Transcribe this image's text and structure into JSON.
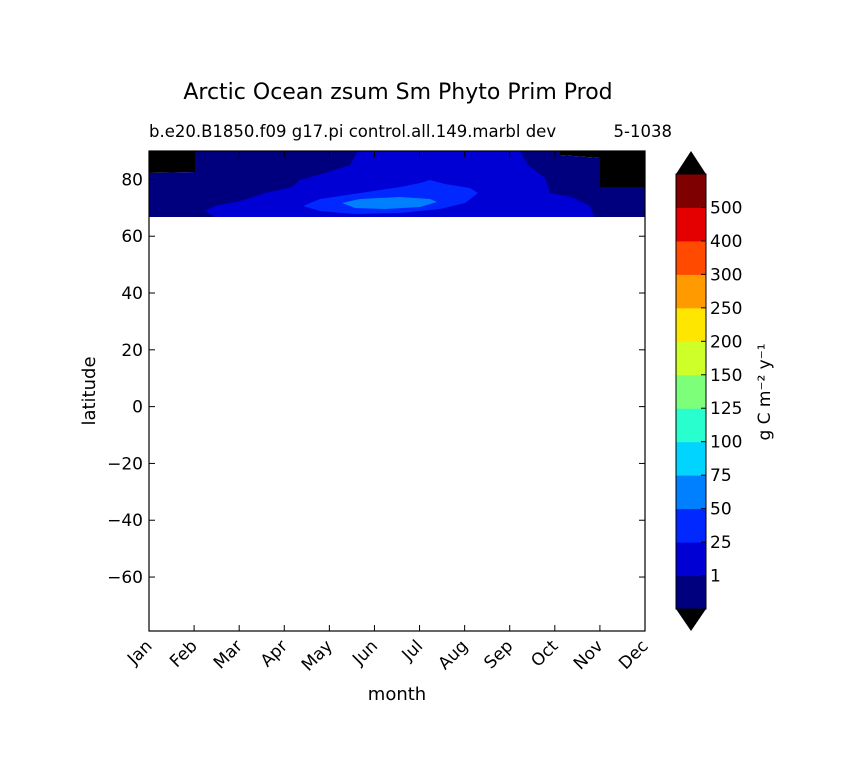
{
  "chart_data": {
    "type": "contourf",
    "title": "Arctic Ocean zsum Sm Phyto Prim Prod",
    "subtitle_left": "b.e20.B1850.f09 g17.pi control.all.149.marbl dev",
    "subtitle_right": "5-1038",
    "xlabel": "month",
    "ylabel": "latitude",
    "x_tick_labels": [
      "Jan",
      "Feb",
      "Mar",
      "Apr",
      "May",
      "Jun",
      "Jul",
      "Aug",
      "Sep",
      "Oct",
      "Nov",
      "Dec"
    ],
    "y_ticks": [
      80,
      60,
      40,
      20,
      0,
      -20,
      -40,
      -60
    ],
    "y_tick_labels": [
      "80",
      "60",
      "40",
      "20",
      "0",
      "−20",
      "−40",
      "−60"
    ],
    "ylim": [
      -79,
      90
    ],
    "data_lat_range": [
      66,
      90
    ],
    "colorbar": {
      "label": "g C m⁻² y⁻¹",
      "levels": [
        "1",
        "25",
        "50",
        "75",
        "100",
        "125",
        "150",
        "200",
        "250",
        "300",
        "400",
        "500"
      ],
      "colors": [
        "#00007f",
        "#0000d5",
        "#0028ff",
        "#0080ff",
        "#00d4ff",
        "#29ffce",
        "#7dff7a",
        "#ceff29",
        "#ffe600",
        "#ff9a00",
        "#ff4a00",
        "#e40000",
        "#7f0000"
      ],
      "under_color": "#000000",
      "over_color": "#000000"
    },
    "regions": [
      {
        "level": 1,
        "desc": "low productivity band across all months, 66-90N"
      },
      {
        "level": 2,
        "desc": "25-50 from Apr to Oct"
      },
      {
        "level": 3,
        "desc": "50-75 Jun-Aug near 70N"
      },
      {
        "level": 4,
        "desc": "75-100 late Jun near 71N"
      },
      {
        "level": 0,
        "desc": "below 1 in Jan and Nov-Dec at high latitude"
      }
    ]
  }
}
